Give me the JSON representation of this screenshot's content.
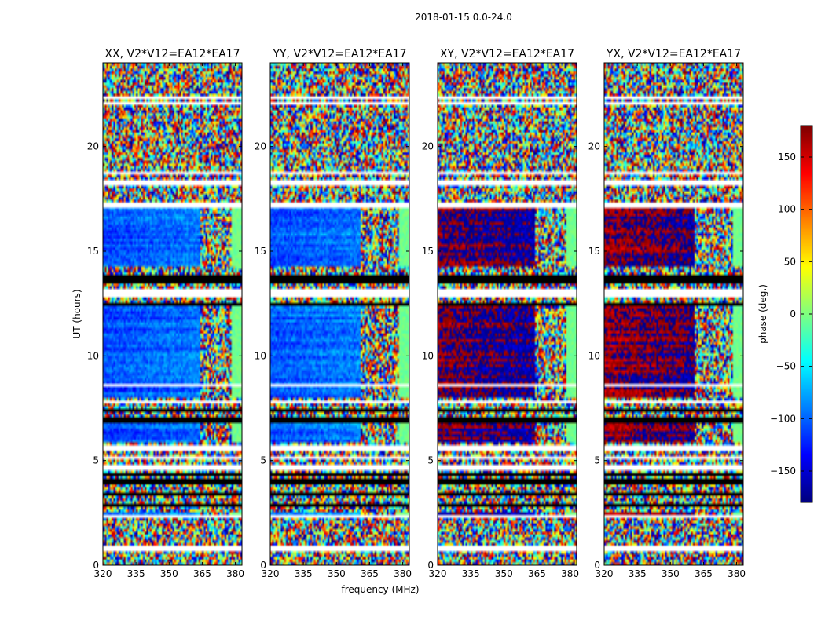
{
  "figure": {
    "suptitle": "2018-01-15 0.0-24.0"
  },
  "chart_data": {
    "type": "heatmap",
    "x": {
      "label": "frequency (MHz)",
      "lim": [
        320,
        383
      ],
      "ticks": [
        320,
        335,
        350,
        365,
        380
      ]
    },
    "y": {
      "label": "UT (hours)",
      "lim": [
        0,
        24
      ],
      "ticks": [
        0,
        5,
        10,
        15,
        20
      ]
    },
    "colorbar": {
      "label": "phase (deg.)",
      "colormap": "jet",
      "lim": [
        -180,
        180
      ],
      "ticks": [
        -150,
        -100,
        -50,
        0,
        50,
        100,
        150
      ],
      "tick_labels": [
        "−150",
        "−100",
        "−50",
        "0",
        "50",
        "100",
        "150"
      ]
    },
    "panels": [
      {
        "title": "XX, V2*V12=EA12*EA17",
        "low_freq_phase": -110,
        "transition_mhz": 364
      },
      {
        "title": "YY, V2*V12=EA12*EA17",
        "low_freq_phase": -105,
        "transition_mhz": 361
      },
      {
        "title": "XY, V2*V12=EA12*EA17",
        "low_freq_phase": 175,
        "transition_mhz": 364
      },
      {
        "title": "YX, V2*V12=EA12*EA17",
        "low_freq_phase": 170,
        "transition_mhz": 361
      }
    ],
    "flagged_ut_ranges": [
      [
        0.65,
        0.75
      ],
      [
        0.85,
        1.0
      ],
      [
        1.15,
        1.25
      ],
      [
        1.4,
        1.5
      ],
      [
        2.2,
        2.35
      ],
      [
        5.5,
        5.7
      ],
      [
        4.6,
        4.75
      ],
      [
        5.1,
        5.2
      ],
      [
        7.7,
        7.85
      ],
      [
        8.6,
        8.7
      ],
      [
        12.8,
        13.25
      ],
      [
        17.1,
        17.3
      ],
      [
        18.2,
        18.45
      ],
      [
        18.7,
        18.8
      ],
      [
        22.3,
        22.45
      ],
      [
        22.0,
        22.1
      ]
    ],
    "missing_ut_ranges": [
      [
        3.9,
        4.15
      ],
      [
        4.3,
        4.4
      ],
      [
        6.85,
        7.05
      ],
      [
        7.3,
        7.45
      ],
      [
        13.5,
        13.9
      ],
      [
        12.4,
        12.55
      ],
      [
        2.85,
        3.0
      ],
      [
        3.3,
        3.4
      ]
    ],
    "coherent_ut_ranges": [
      [
        2.35,
        2.6
      ],
      [
        5.9,
        6.8
      ],
      [
        8.0,
        12.4
      ],
      [
        14.3,
        17.1
      ]
    ]
  }
}
